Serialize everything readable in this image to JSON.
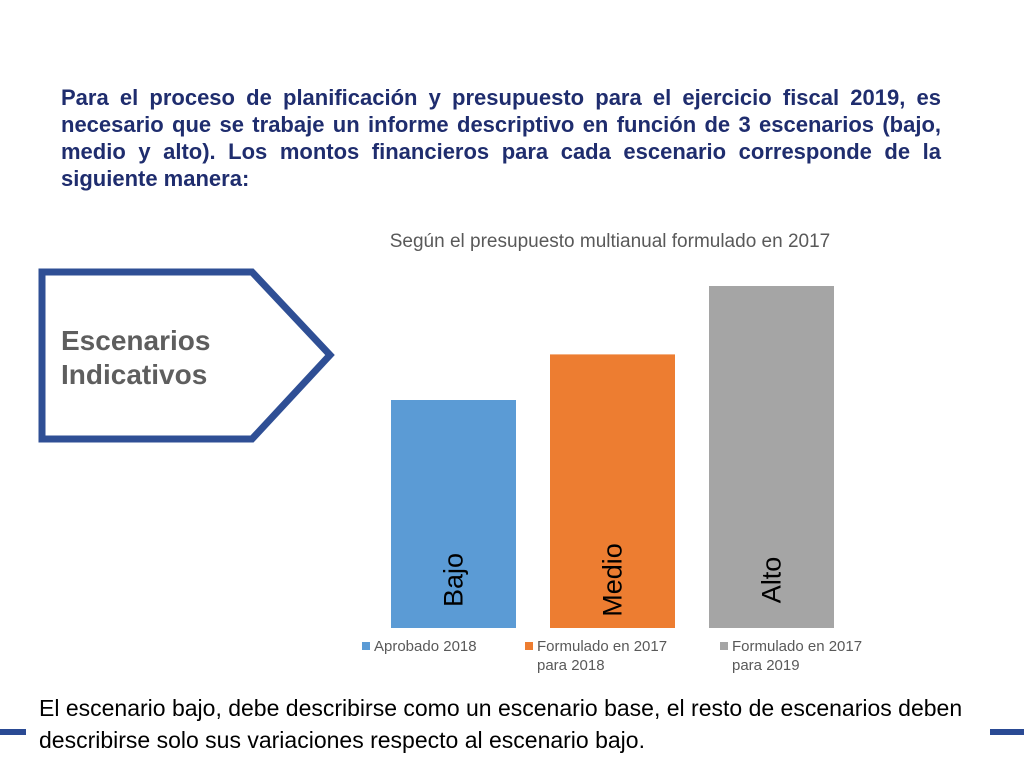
{
  "intro_text": "Para el proceso de planificación y presupuesto para el ejercicio fiscal 2019, es necesario que se trabaje un informe descriptivo en función de 3 escenarios  (bajo, medio y alto).  Los montos financieros para cada escenario corresponde de la siguiente manera:",
  "shape_label": {
    "line1": "Escenarios",
    "line2": "Indicativos"
  },
  "footer_text": "El escenario bajo, debe describirse como un escenario base, el resto de escenarios deben describirse solo sus variaciones respecto al escenario bajo.",
  "colors": {
    "title": "#1f2d6e",
    "chevron": "#2f4f95",
    "deco": "#2a4a94"
  },
  "chart_data": {
    "type": "bar",
    "title": "Según el presupuesto multianual formulado en 2017",
    "categories": [
      "Bajo",
      "Medio",
      "Alto"
    ],
    "series": [
      {
        "name": "Aprobado 2018",
        "values": [
          100,
          null,
          null
        ],
        "color": "#5b9bd5"
      },
      {
        "name": "Formulado en 2017 para 2018",
        "values": [
          null,
          120,
          null
        ],
        "color": "#ed7d31"
      },
      {
        "name": "Formulado en 2017 para 2019",
        "values": [
          null,
          null,
          150
        ],
        "color": "#a5a5a5"
      }
    ],
    "ylim": [
      0,
      150
    ],
    "grid": false,
    "xlabel": "",
    "ylabel": "",
    "legend_position": "bottom",
    "legend": [
      {
        "line1": "Aprobado 2018",
        "line2": ""
      },
      {
        "line1": "Formulado en 2017",
        "line2": "para 2018"
      },
      {
        "line1": "Formulado en 2017",
        "line2": "para 2019"
      }
    ]
  }
}
